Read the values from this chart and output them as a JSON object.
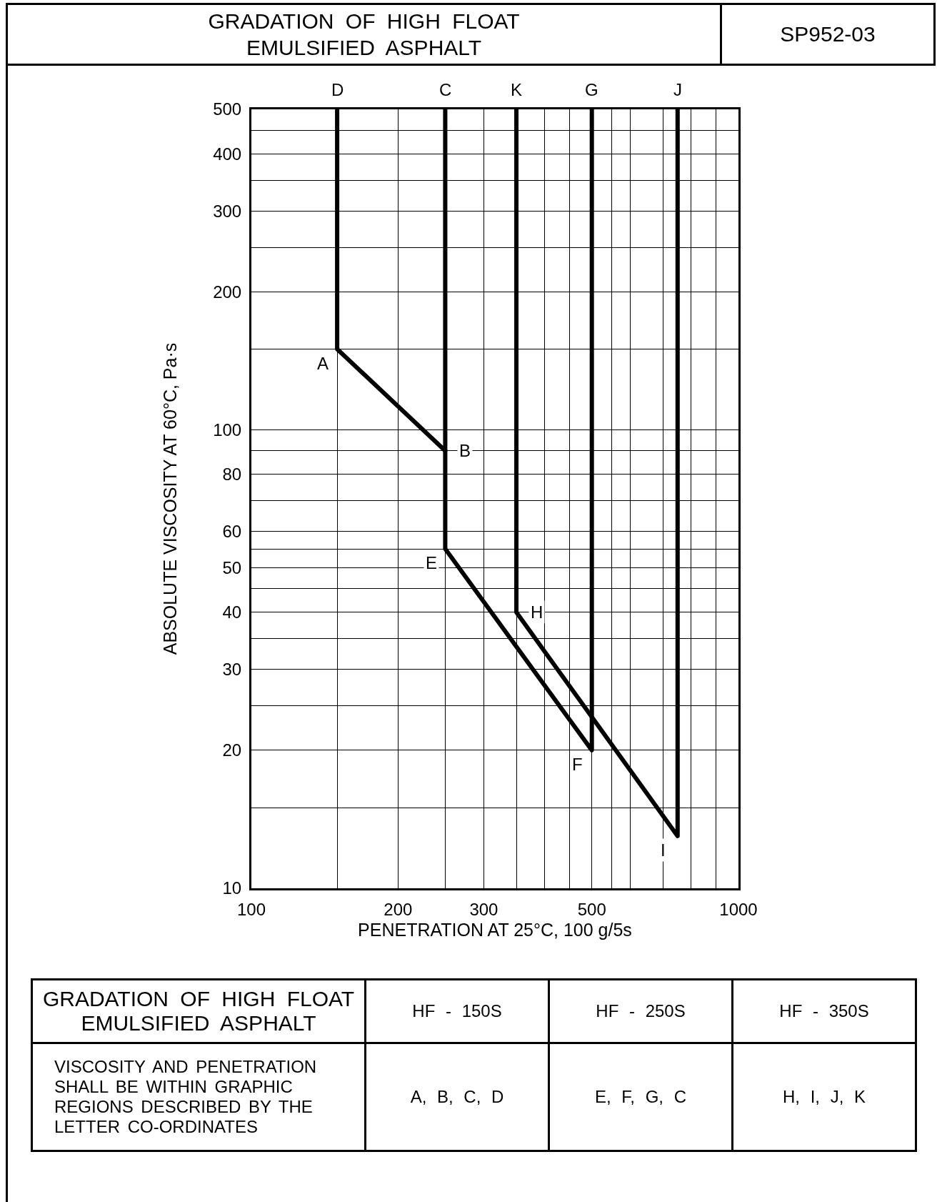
{
  "chart_data": {
    "type": "line",
    "title": "GRADATION OF HIGH FLOAT\nEMULSIFIED ASPHALT",
    "xlabel": "PENETRATION AT 25°C, 100 g/5s",
    "ylabel": "ABSOLUTE VISCOSITY AT 60°C, Pa·s",
    "log": "xy",
    "grid": true,
    "line_style": "solid",
    "xlim": [
      100,
      1000
    ],
    "xticks": [
      100,
      {
        "value": 150,
        "label": null
      },
      200,
      {
        "value": 250,
        "label": null
      },
      300,
      {
        "value": 350,
        "label": null
      },
      {
        "value": 400,
        "label": null
      },
      {
        "value": 450,
        "label": null
      },
      500,
      {
        "value": 550,
        "label": null
      },
      {
        "value": 600,
        "label": null
      },
      {
        "value": 700,
        "label": null
      },
      {
        "value": 800,
        "label": null
      },
      {
        "value": 900,
        "label": null
      },
      1000
    ],
    "ylim": [
      10,
      500
    ],
    "yticks": [
      10,
      {
        "value": 15,
        "label": null
      },
      20,
      {
        "value": 25,
        "label": null
      },
      30,
      {
        "value": 35,
        "label": null
      },
      40,
      {
        "value": 45,
        "label": null
      },
      50,
      {
        "value": 55,
        "label": null
      },
      60,
      {
        "value": 70,
        "label": null
      },
      80,
      {
        "value": 90,
        "label": null
      },
      100,
      {
        "value": 150,
        "label": null
      },
      200,
      {
        "value": 250,
        "label": null
      },
      300,
      {
        "value": 350,
        "label": null
      },
      400,
      {
        "value": 450,
        "label": null
      },
      500
    ],
    "series": [
      {
        "color": "#000000",
        "x": [
          150,
          150,
          250
        ],
        "values": [
          500,
          150,
          90
        ]
      },
      {
        "color": "#000000",
        "x": [
          250,
          250,
          500,
          500
        ],
        "values": [
          500,
          55,
          20,
          500
        ]
      },
      {
        "color": "#000000",
        "x": [
          350,
          350,
          750,
          750
        ],
        "values": [
          500,
          40,
          13,
          500
        ]
      }
    ],
    "annotations": [
      "SP952-03",
      "GRADATION OF HIGH FLOAT\nEMULSIFIED ASPHALT",
      "HF - 150S",
      "HF - 250S",
      "HF - 350S",
      "VISCOSITY AND PENETRATION\nSHALL BE WITHIN GRAPHIC\nREGIONS DESCRIBED BY THE\nLETTER CO-ORDINATES",
      "A, B, C, D",
      "E, F, G, C",
      "H, I, J, K",
      {
        "text": "D",
        "x": 150,
        "y": 500
      },
      {
        "text": "C",
        "x": 250,
        "y": 500
      },
      {
        "text": "K",
        "x": 350,
        "y": 500
      },
      {
        "text": "G",
        "x": 500,
        "y": 500
      },
      {
        "text": "J",
        "x": 750,
        "y": 500
      },
      {
        "text": "A",
        "x": 150,
        "y": 150
      },
      {
        "text": "B",
        "x": 250,
        "y": 90
      },
      {
        "text": "E",
        "x": 250,
        "y": 55
      },
      {
        "text": "H",
        "x": 350,
        "y": 40
      },
      {
        "text": "F",
        "x": 500,
        "y": 20
      },
      {
        "text": "I",
        "x": 750,
        "y": 13
      }
    ]
  }
}
